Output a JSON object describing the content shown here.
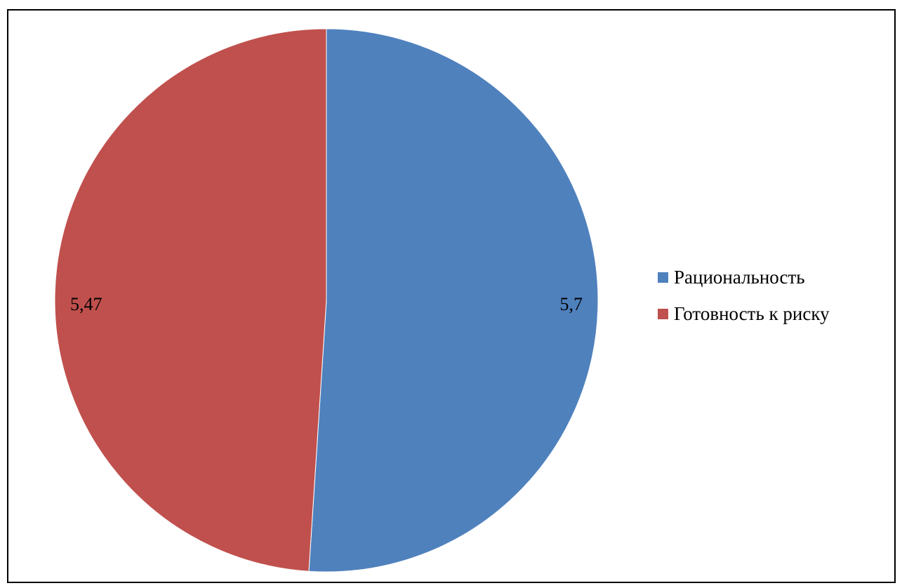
{
  "chart_data": {
    "type": "pie",
    "categories": [
      "Рациональность",
      "Готовность к риску"
    ],
    "values": [
      5.7,
      5.47
    ],
    "data_labels": [
      "5,7",
      "5,47"
    ],
    "colors": [
      "#4F81BD",
      "#C0504D"
    ],
    "legend_position": "right"
  },
  "legend": {
    "items": [
      {
        "label": "Рациональность",
        "color": "#4F81BD"
      },
      {
        "label": "Готовность к риску",
        "color": "#C0504D"
      }
    ]
  }
}
